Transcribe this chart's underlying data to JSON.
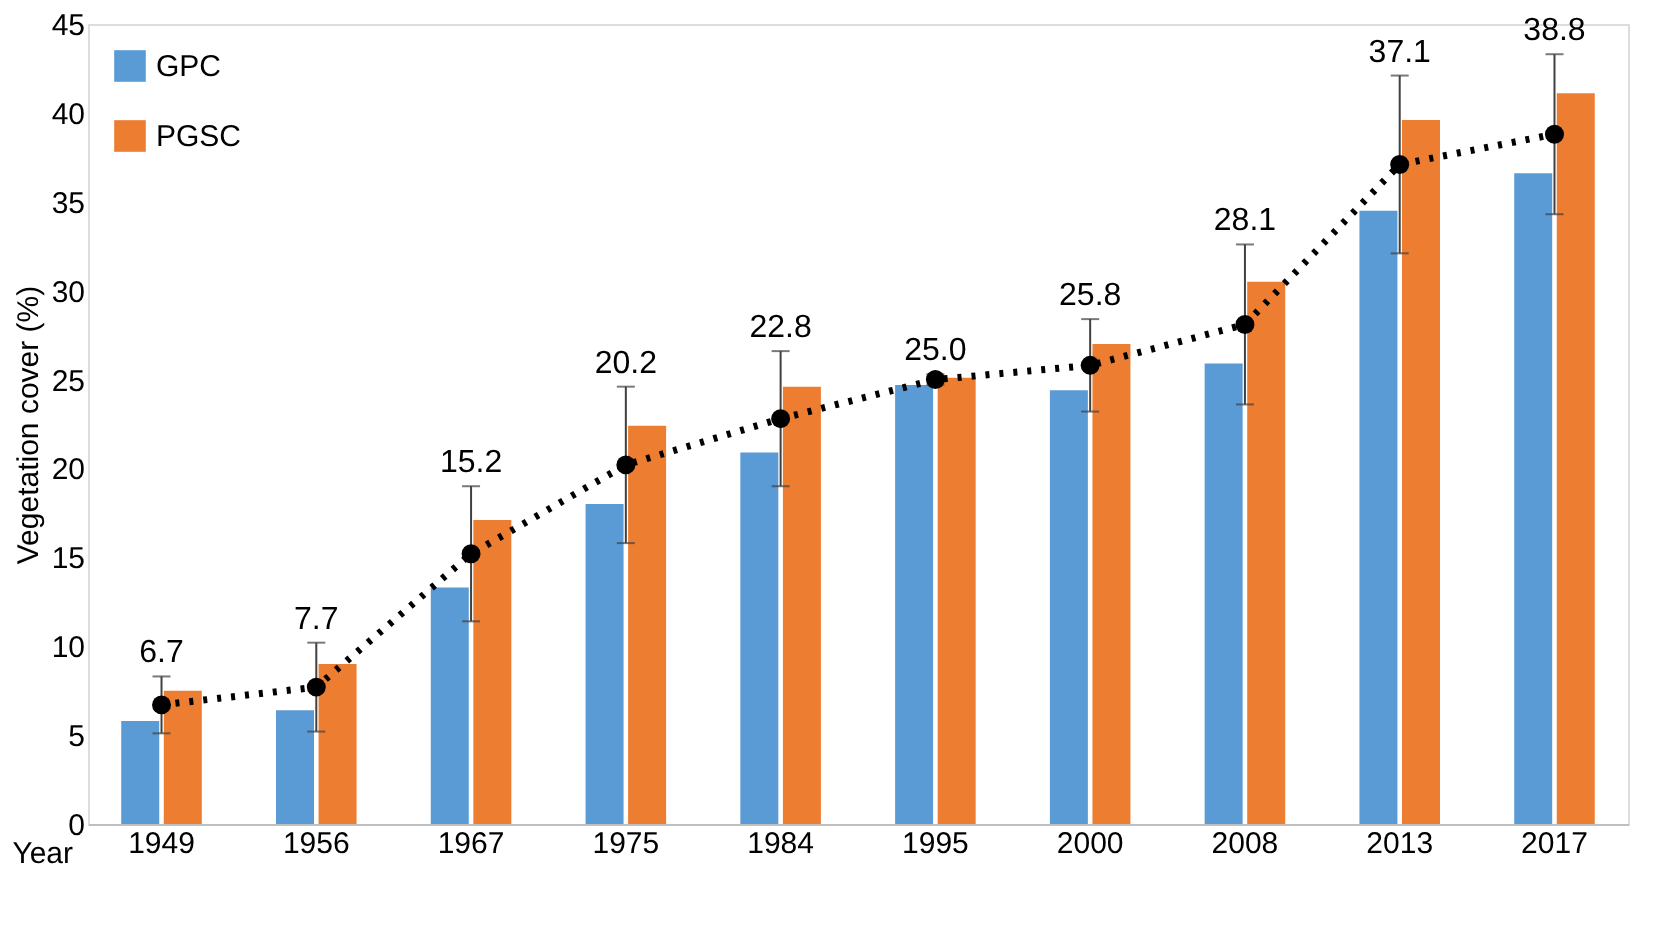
{
  "chart_data": {
    "type": "bar",
    "ylabel": "Vegetation cover (%)",
    "xlabel": "Year",
    "categories": [
      "1949",
      "1956",
      "1967",
      "1975",
      "1984",
      "1995",
      "2000",
      "2008",
      "2013",
      "2017"
    ],
    "series": [
      {
        "name": "GPC",
        "color": "#5b9bd5",
        "values": [
          5.8,
          6.4,
          13.3,
          18.0,
          20.9,
          24.7,
          24.4,
          25.9,
          34.5,
          36.6
        ]
      },
      {
        "name": "PGSC",
        "color": "#ed7d31",
        "values": [
          7.5,
          9.0,
          17.1,
          22.4,
          24.6,
          25.1,
          27.0,
          30.5,
          39.6,
          41.1
        ]
      },
      {
        "type": "line",
        "color": "#000000",
        "line_style": "dotted",
        "marker": "circle",
        "values": [
          6.7,
          7.7,
          15.2,
          20.2,
          22.8,
          25.0,
          25.8,
          28.1,
          37.1,
          38.8
        ],
        "errors": [
          1.6,
          2.5,
          3.8,
          4.4,
          3.8,
          0.3,
          2.6,
          4.5,
          5.0,
          4.5
        ],
        "value_labels": [
          "6.7",
          "7.7",
          "15.2",
          "20.2",
          "22.8",
          "25.0",
          "25.8",
          "28.1",
          "37.1",
          "38.8"
        ]
      }
    ],
    "ylim": [
      0,
      45
    ],
    "yticks": [
      0,
      5,
      10,
      15,
      20,
      25,
      30,
      35,
      40,
      45
    ],
    "grid": false,
    "legend": "top left"
  }
}
